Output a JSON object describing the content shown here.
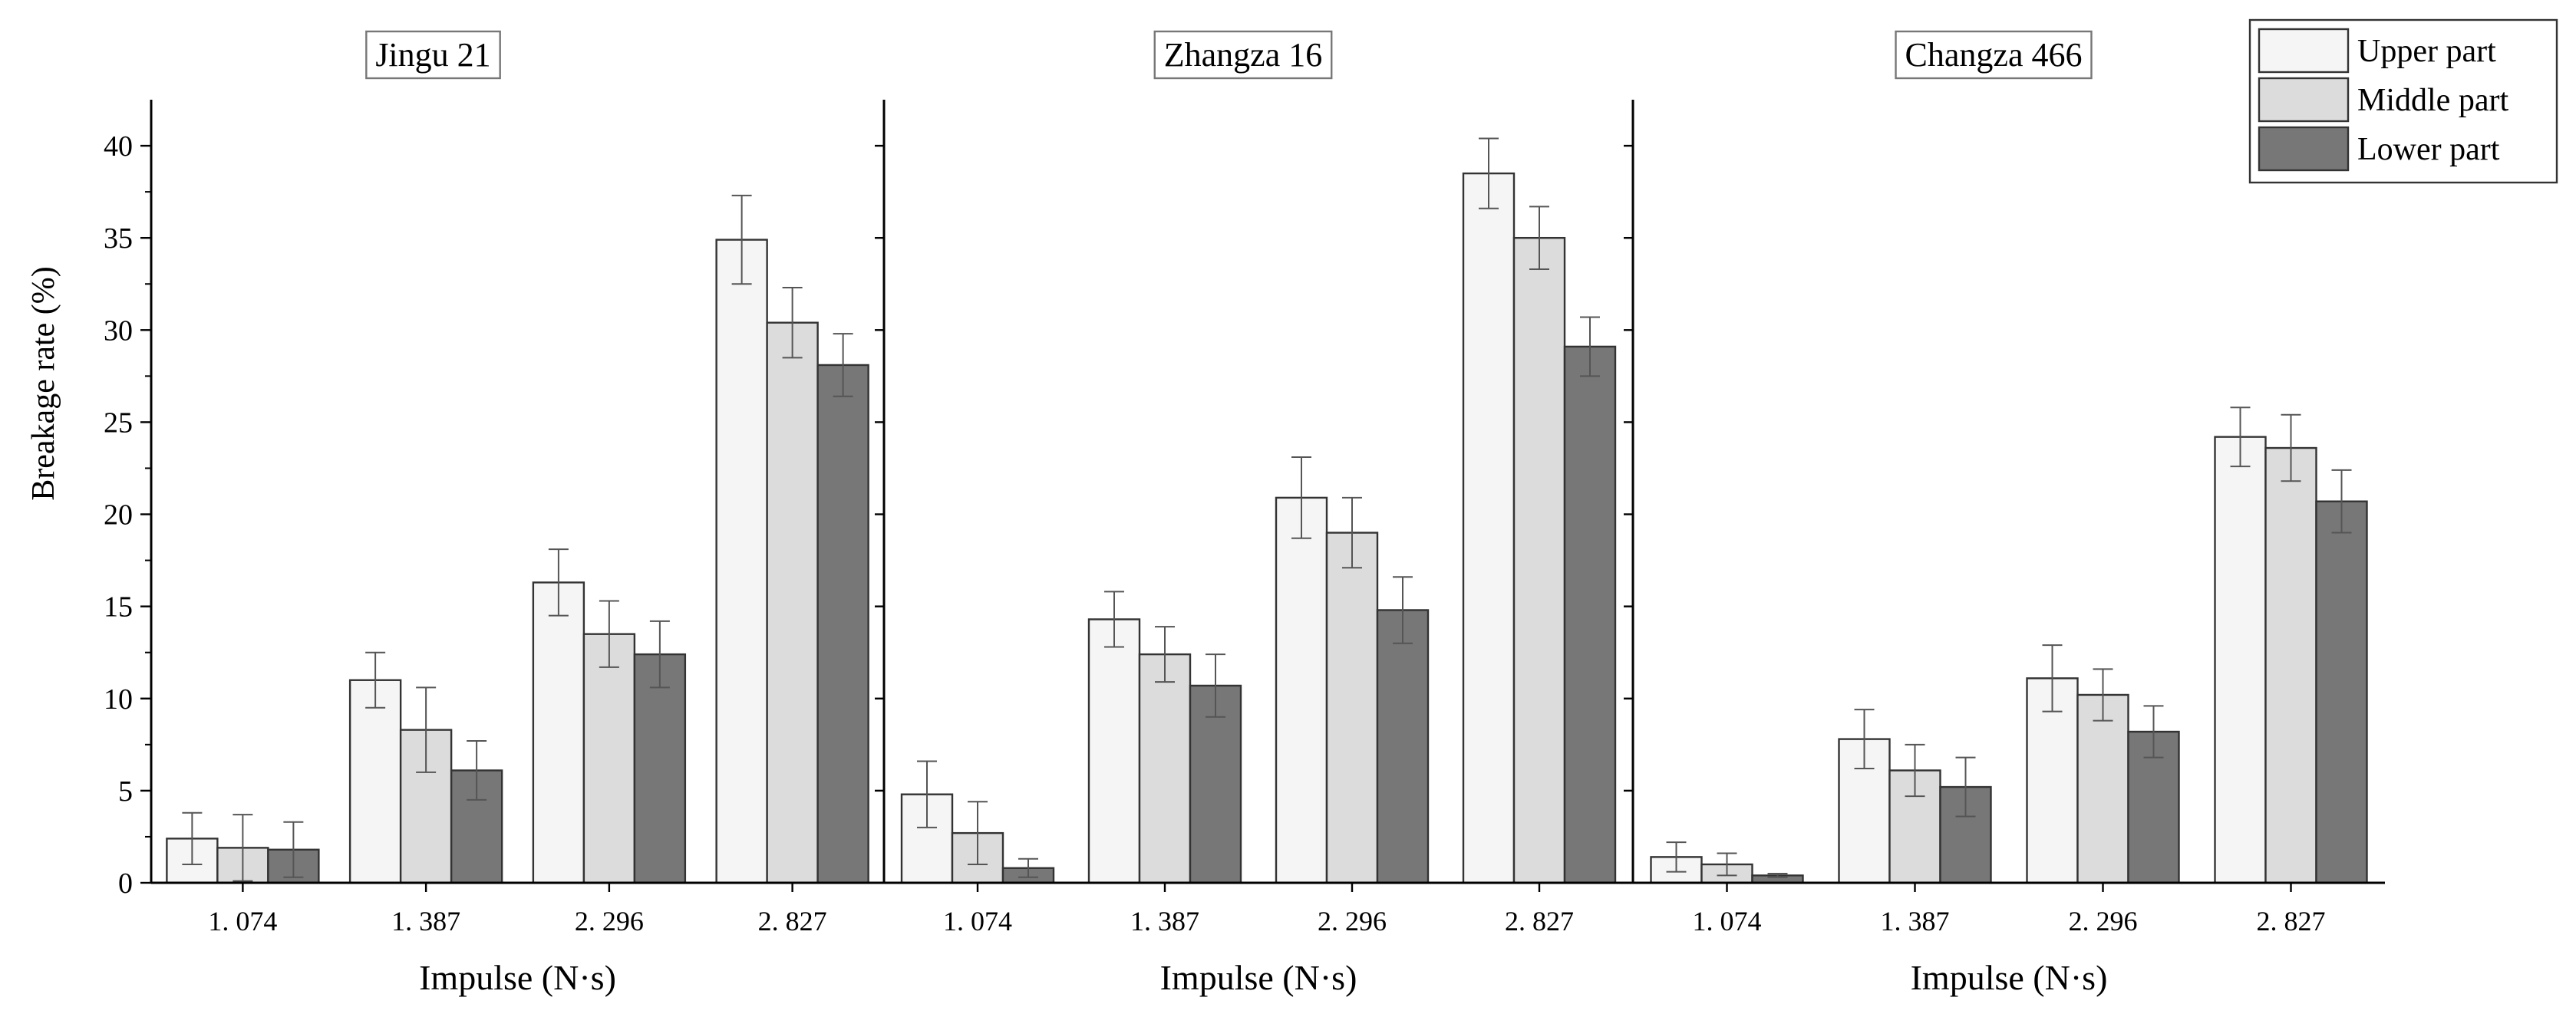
{
  "chart_data": {
    "type": "bar",
    "ylabel": "Breakage rate (%)",
    "ylim": [
      0,
      42.5
    ],
    "yticks": [
      0,
      5,
      10,
      15,
      20,
      25,
      30,
      35,
      40
    ],
    "yticks_labels": [
      "0",
      "5",
      "10",
      "15",
      "20",
      "25",
      "30",
      "35",
      "40"
    ],
    "grid": false,
    "legend_position": "top-right",
    "series_names": [
      "Upper part",
      "Middle part",
      "Lower part"
    ],
    "series_colors": [
      "#f5f5f5",
      "#dcdcdc",
      "#777777"
    ],
    "panels": [
      {
        "title": "Jingu 21",
        "xlabel": "Impulse (N·s)",
        "categories": [
          "1. 074",
          "1. 387",
          "2. 296",
          "2. 827"
        ],
        "series": [
          {
            "name": "Upper part",
            "values": [
              2.4,
              11.0,
              16.3,
              34.9
            ],
            "errors": [
              1.4,
              1.5,
              1.8,
              2.4
            ]
          },
          {
            "name": "Middle part",
            "values": [
              1.9,
              8.3,
              13.5,
              30.4
            ],
            "errors": [
              1.8,
              2.3,
              1.8,
              1.9
            ]
          },
          {
            "name": "Lower part",
            "values": [
              1.8,
              6.1,
              12.4,
              28.1
            ],
            "errors": [
              1.5,
              1.6,
              1.8,
              1.7
            ]
          }
        ]
      },
      {
        "title": "Zhangza 16",
        "xlabel": "Impulse (N·s)",
        "categories": [
          "1. 074",
          "1. 387",
          "2. 296",
          "2. 827"
        ],
        "series": [
          {
            "name": "Upper part",
            "values": [
              4.8,
              14.3,
              20.9,
              38.5
            ],
            "errors": [
              1.8,
              1.5,
              2.2,
              1.9
            ]
          },
          {
            "name": "Middle part",
            "values": [
              2.7,
              12.4,
              19.0,
              35.0
            ],
            "errors": [
              1.7,
              1.5,
              1.9,
              1.7
            ]
          },
          {
            "name": "Lower part",
            "values": [
              0.8,
              10.7,
              14.8,
              29.1
            ],
            "errors": [
              0.5,
              1.7,
              1.8,
              1.6
            ]
          }
        ]
      },
      {
        "title": "Changza 466",
        "xlabel": "Impulse (N·s)",
        "categories": [
          "1. 074",
          "1. 387",
          "2. 296",
          "2. 827"
        ],
        "series": [
          {
            "name": "Upper part",
            "values": [
              1.4,
              7.8,
              11.1,
              24.2
            ],
            "errors": [
              0.8,
              1.6,
              1.8,
              1.6
            ]
          },
          {
            "name": "Middle part",
            "values": [
              1.0,
              6.1,
              10.2,
              23.6
            ],
            "errors": [
              0.6,
              1.4,
              1.4,
              1.8
            ]
          },
          {
            "name": "Lower part",
            "values": [
              0.4,
              5.2,
              8.2,
              20.7
            ],
            "errors": [
              0.1,
              1.6,
              1.4,
              1.7
            ]
          }
        ]
      }
    ]
  }
}
